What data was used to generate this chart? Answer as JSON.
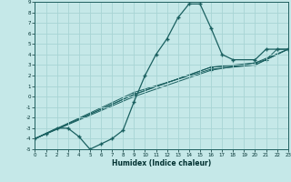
{
  "xlabel": "Humidex (Indice chaleur)",
  "bg_color": "#c5e8e8",
  "grid_color": "#a8d4d4",
  "line_color": "#1a6060",
  "xlim": [
    0,
    23
  ],
  "ylim": [
    -5,
    9
  ],
  "xticks": [
    0,
    1,
    2,
    3,
    4,
    5,
    6,
    7,
    8,
    9,
    10,
    11,
    12,
    13,
    14,
    15,
    16,
    17,
    18,
    19,
    20,
    21,
    22,
    23
  ],
  "yticks": [
    -5,
    -4,
    -3,
    -2,
    -1,
    0,
    1,
    2,
    3,
    4,
    5,
    6,
    7,
    8,
    9
  ],
  "main_line": {
    "x": [
      0,
      1,
      2,
      3,
      4,
      5,
      6,
      7,
      8,
      9,
      10,
      11,
      12,
      13,
      14,
      15,
      16,
      17,
      18,
      20,
      21,
      22,
      23
    ],
    "y": [
      -4,
      -3.5,
      -3,
      -3,
      -3.8,
      -5,
      -4.5,
      -4,
      -3.2,
      -0.5,
      2,
      4,
      5.5,
      7.5,
      8.8,
      8.8,
      6.5,
      4,
      3.5,
      3.5,
      4.5,
      4.5,
      4.5
    ]
  },
  "straight_lines": [
    {
      "x": [
        0,
        9,
        16,
        20,
        21,
        22,
        23
      ],
      "y": [
        -4,
        0,
        2.5,
        3.2,
        3.5,
        4.5,
        4.5
      ]
    },
    {
      "x": [
        0,
        9,
        16,
        20,
        23
      ],
      "y": [
        -4,
        0.2,
        2.8,
        3.0,
        4.5
      ]
    },
    {
      "x": [
        0,
        9,
        16,
        20,
        23
      ],
      "y": [
        -4,
        0.4,
        2.6,
        3.0,
        4.5
      ]
    },
    {
      "x": [
        0,
        9,
        16,
        20,
        23
      ],
      "y": [
        -4,
        0.2,
        2.8,
        3.2,
        4.5
      ]
    }
  ]
}
